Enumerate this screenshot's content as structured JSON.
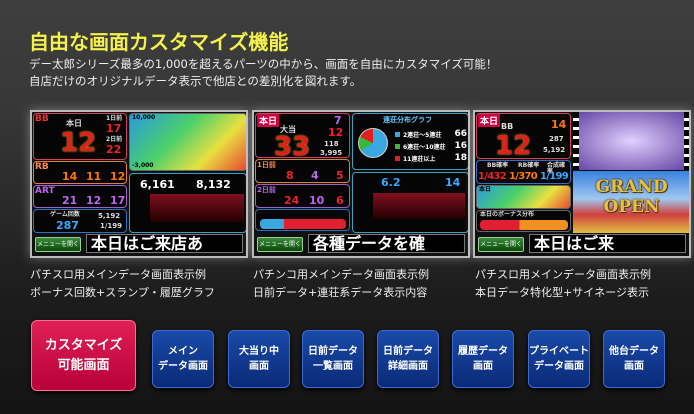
{
  "header": {
    "title": "自由な画面カスタマイズ機能",
    "desc_line1": "デー太郎シリーズ最多の1,000を超えるパーツの中から、画面を自由にカスタマイズ可能！",
    "desc_line2": "自店だけのオリジナルデータ表示で他店との差別化を図れます。"
  },
  "screens": [
    {
      "bb_label": "BB",
      "today": "本日",
      "bb_today": "12",
      "prev1_label": "1日前",
      "prev1": "17",
      "prev2_label": "2日前",
      "prev2": "22",
      "rb_label": "RB",
      "rb": [
        "14",
        "11",
        "12"
      ],
      "art_label": "ART",
      "art": [
        "21",
        "12",
        "17"
      ],
      "games_label": "ゲーム回数",
      "games": "287",
      "games_total": "5,192",
      "ratio": "1/199",
      "graph_top": "10,000",
      "graph_bottom": "-3,000",
      "max_today": "6,161",
      "max_recent": "8,132",
      "menu": "メニューを開く",
      "ticker": "本日はご来店あ"
    },
    {
      "today_label": "本日",
      "jackpot_label": "大当",
      "jackpot": "33",
      "first": "7",
      "streak": "12",
      "start1": "118",
      "start2": "3,995",
      "prev1_label": "1日前",
      "prev1": [
        "8",
        "4",
        "5"
      ],
      "prev2_label": "2日前",
      "prev2": [
        "24",
        "10",
        "6"
      ],
      "pie_title": "連荘分布グラフ",
      "pie_legend": [
        {
          "label": "2連荘～5連荘",
          "value": "66",
          "color": "#3aa8e0"
        },
        {
          "label": "6連荘～10連荘",
          "value": "16",
          "color": "#3ab83a"
        },
        {
          "label": "11連荘以上",
          "value": "18",
          "color": "#e02020"
        }
      ],
      "avg": "6.2",
      "max": "14",
      "menu": "メニューを開く",
      "ticker": "各種データを確"
    },
    {
      "today_label": "本日",
      "bb_label": "BB",
      "bb": "12",
      "rb": "14",
      "games": "287",
      "total": "5,192",
      "prob_labels": [
        "BB確率",
        "RB確率",
        "合成確率"
      ],
      "probs": [
        "1/432",
        "1/370",
        "1/199"
      ],
      "graph_label": "本日",
      "bonus_label": "本日のボーナス分布",
      "banner_line1": "GRAND",
      "banner_line2": "OPEN",
      "menu": "メニューを開く",
      "ticker": "本日はご来"
    }
  ],
  "captions": [
    {
      "line1": "パチスロ用メインデータ画面表示例",
      "line2": "ボーナス回数+スランプ・履歴グラフ"
    },
    {
      "line1": "パチンコ用メインデータ画面表示例",
      "line2": "日前データ+連荘系データ表示内容"
    },
    {
      "line1": "パチスロ用メインデータ画面表示例",
      "line2": "本日データ特化型+サイネージ表示"
    }
  ],
  "buttons": {
    "custom": {
      "line1": "カスタマイズ",
      "line2": "可能画面",
      "color": "#c8003e"
    },
    "screens": [
      {
        "line1": "メイン",
        "line2": "データ画面"
      },
      {
        "line1": "大当り中",
        "line2": "画面"
      },
      {
        "line1": "日前データ",
        "line2": "一覧画面"
      },
      {
        "line1": "日前データ",
        "line2": "詳細画面"
      },
      {
        "line1": "履歴データ",
        "line2": "画面"
      },
      {
        "line1": "プライベート",
        "line2": "データ画面"
      },
      {
        "line1": "他台データ",
        "line2": "画面"
      }
    ],
    "color": "#0f3a8e"
  }
}
